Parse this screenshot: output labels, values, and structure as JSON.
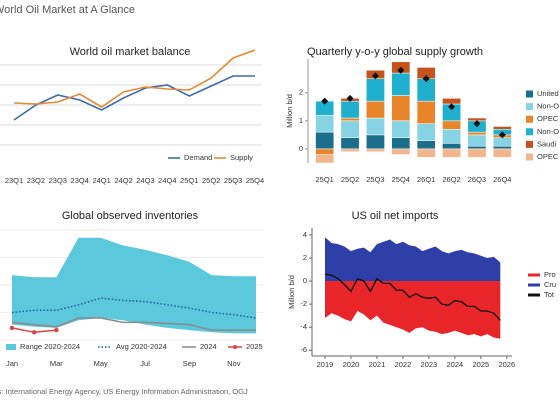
{
  "header": {
    "title": "World Oil Market at A Glance"
  },
  "footer": {
    "source": "Sources: International Energy Agency, US Energy Information Administration, OGJ"
  },
  "chart_data": [
    {
      "type": "line",
      "title": "World oil market balance",
      "categories": [
        "23Q1",
        "23Q2",
        "23Q3",
        "23Q4",
        "24Q1",
        "24Q2",
        "24Q3",
        "24Q4",
        "25Q1",
        "25Q2",
        "25Q3",
        "25Q4"
      ],
      "series": [
        {
          "name": "Demand",
          "color": "#3b6db3",
          "values": [
            1.25,
            2.0,
            2.5,
            2.25,
            1.75,
            2.35,
            2.85,
            3.0,
            2.45,
            2.95,
            3.45,
            3.45
          ]
        },
        {
          "name": "Supply",
          "color": "#e8892f",
          "values": [
            2.1,
            2.05,
            2.15,
            2.55,
            1.9,
            2.65,
            2.9,
            2.8,
            2.75,
            3.35,
            4.35,
            4.75
          ]
        }
      ],
      "ylim": [
        0,
        4.8
      ],
      "yticks": [
        0,
        1,
        2,
        3,
        4
      ],
      "grid": true,
      "ytick_labels": false,
      "legend": "bottom-right"
    },
    {
      "type": "bar",
      "title": "Quarterly y-o-y global supply growth",
      "y_label": "Million b/d",
      "stacked": true,
      "categories": [
        "25Q1",
        "25Q2",
        "25Q3",
        "25Q4",
        "26Q1",
        "26Q2",
        "26Q3",
        "26Q4"
      ],
      "series": [
        {
          "name": "United",
          "color": "#1b6f8c",
          "values": [
            0.6,
            0.4,
            0.5,
            0.4,
            0.3,
            0.2,
            0.1,
            0.1
          ]
        },
        {
          "name": "Non-O",
          "color": "#86d3e3",
          "values": [
            0.6,
            0.6,
            0.6,
            0.6,
            0.6,
            0.5,
            0.4,
            0.3
          ]
        },
        {
          "name": "OPEC",
          "color": "#e8852a",
          "values": [
            -0.2,
            0.1,
            0.6,
            0.9,
            0.8,
            0.3,
            0.1,
            0.1
          ]
        },
        {
          "name": "Non-O",
          "color": "#1fb0cf",
          "values": [
            0.5,
            0.6,
            0.8,
            0.8,
            0.8,
            0.6,
            0.4,
            0.2
          ]
        },
        {
          "name": "Saudi",
          "color": "#c4531d",
          "values": [
            0,
            0.1,
            0.3,
            0.4,
            0.4,
            0.2,
            0.1,
            0.1
          ]
        },
        {
          "name": "OPEC",
          "color": "#f3b68c",
          "values": [
            -0.3,
            -0.1,
            -0.1,
            -0.2,
            -0.3,
            -0.3,
            -0.3,
            -0.3
          ]
        }
      ],
      "markers": {
        "color": "#111111",
        "values": [
          1.7,
          1.8,
          2.6,
          2.8,
          2.5,
          1.5,
          0.9,
          0.5
        ]
      },
      "ylim": [
        -0.5,
        3.2
      ],
      "yticks": [
        0,
        1,
        2
      ],
      "legend": "right"
    },
    {
      "type": "band",
      "title": "Global observed inventories",
      "categories": [
        "Jan",
        null,
        "Mar",
        null,
        "May",
        null,
        "Jul",
        null,
        "Sep",
        null,
        "Nov",
        null
      ],
      "range": {
        "name": "Range 2020-2024",
        "color": "#5cc8dc",
        "low": [
          1.4,
          1.2,
          1.1,
          1.8,
          2.0,
          1.8,
          1.4,
          1.1,
          0.9,
          0.7,
          0.6,
          0.6
        ],
        "high": [
          5.9,
          5.7,
          5.7,
          9.3,
          9.3,
          8.6,
          8.2,
          7.7,
          7.1,
          5.9,
          5.8,
          5.8
        ]
      },
      "series": [
        {
          "name": "Avg 2020-2024",
          "color": "#1f5e99",
          "style": "dotted",
          "values": [
            2.5,
            2.7,
            2.7,
            3.2,
            3.8,
            3.6,
            3.5,
            3.2,
            2.9,
            2.5,
            2.3,
            2.0
          ]
        },
        {
          "name": "2024",
          "color": "#8a8a8a",
          "style": "solid",
          "values": [
            1.6,
            1.4,
            1.2,
            2.0,
            2.0,
            1.6,
            1.6,
            1.5,
            1.4,
            0.9,
            0.9,
            0.9
          ]
        },
        {
          "name": "2025",
          "color": "#d9443f",
          "style": "solid",
          "markers": true,
          "values": [
            1.1,
            0.7,
            0.9,
            null,
            null,
            null,
            null,
            null,
            null,
            null,
            null,
            null
          ]
        }
      ],
      "ylim": [
        0,
        10
      ],
      "legend": "bottom"
    },
    {
      "type": "area",
      "title": "US oil net imports",
      "y_label": "Million b/d",
      "x": [
        2019,
        2019.25,
        2019.5,
        2019.75,
        2020,
        2020.25,
        2020.5,
        2020.75,
        2021,
        2021.25,
        2021.5,
        2021.75,
        2022,
        2022.25,
        2022.5,
        2022.75,
        2023,
        2023.25,
        2023.5,
        2023.75,
        2024,
        2024.25,
        2024.5,
        2024.75,
        2025,
        2025.25,
        2025.5,
        2025.75
      ],
      "series": [
        {
          "name": "Pro",
          "color": "#e8262a",
          "area": true,
          "values": [
            -3.2,
            -2.8,
            -3.0,
            -3.3,
            -3.5,
            -2.6,
            -2.9,
            -3.4,
            -3.0,
            -3.6,
            -3.8,
            -4.0,
            -4.2,
            -4.5,
            -4.1,
            -4.0,
            -4.3,
            -4.4,
            -4.6,
            -4.5,
            -4.3,
            -4.5,
            -4.7,
            -4.6,
            -4.8,
            -4.6,
            -4.9,
            -5.0
          ]
        },
        {
          "name": "Cru",
          "color": "#2f3fa8",
          "area": true,
          "values": [
            3.8,
            3.3,
            3.2,
            3.0,
            2.6,
            2.8,
            2.9,
            2.5,
            3.2,
            3.4,
            3.6,
            3.2,
            3.4,
            3.1,
            3.0,
            2.6,
            2.8,
            3.0,
            2.6,
            2.4,
            2.6,
            2.7,
            2.5,
            2.4,
            2.2,
            2.0,
            2.1,
            1.6
          ]
        },
        {
          "name": "Tot",
          "color": "#111111",
          "area": false,
          "values": [
            0.6,
            0.5,
            0.2,
            -0.3,
            -0.9,
            0.2,
            0,
            -0.9,
            0.2,
            -0.2,
            -0.2,
            -0.8,
            -0.8,
            -1.4,
            -1.1,
            -1.4,
            -1.5,
            -1.4,
            -2.0,
            -2.1,
            -1.7,
            -1.8,
            -2.2,
            -2.2,
            -2.6,
            -2.6,
            -2.8,
            -3.4
          ]
        }
      ],
      "xlim": [
        2018.5,
        2026.2
      ],
      "xticks": [
        2019,
        2020,
        2021,
        2022,
        2023,
        2024,
        2025,
        2026
      ],
      "ylim": [
        -6.5,
        4.6
      ],
      "yticks": [
        -6,
        -4,
        -2,
        0,
        2,
        4
      ],
      "legend": "right"
    }
  ]
}
